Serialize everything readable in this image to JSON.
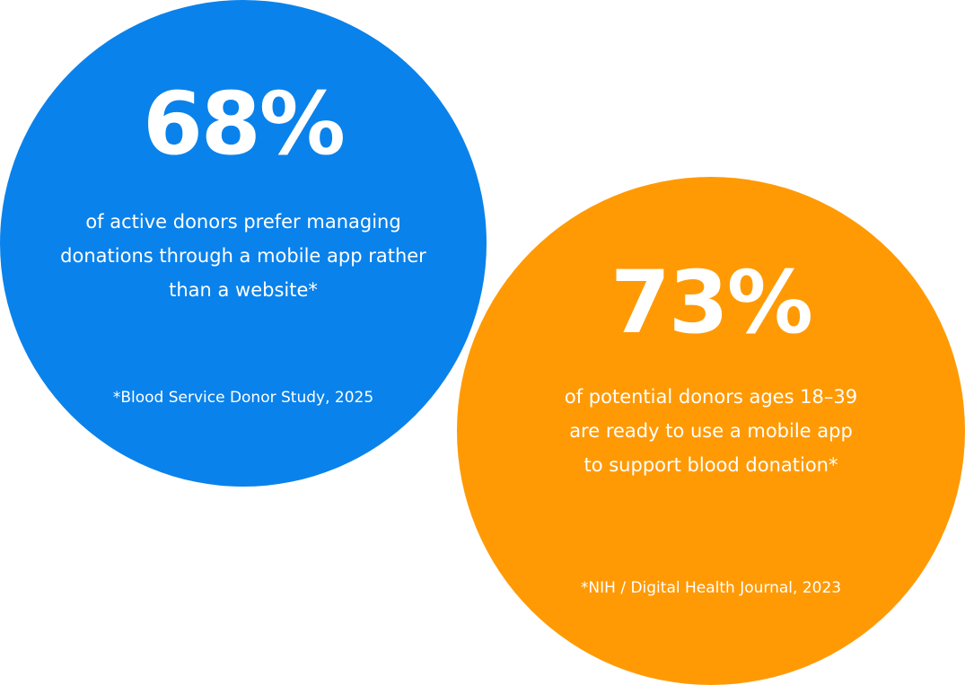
{
  "stats": [
    {
      "value": "68%",
      "description": "of active donors prefer managing donations through a mobile app rather than a website*",
      "source": "*Blood Service Donor Study, 2025"
    },
    {
      "value": "73%",
      "description": "of potential donors ages 18–39 are ready to use a mobile app to support blood donation*",
      "source": "*NIH / Digital Health Journal, 2023"
    }
  ]
}
